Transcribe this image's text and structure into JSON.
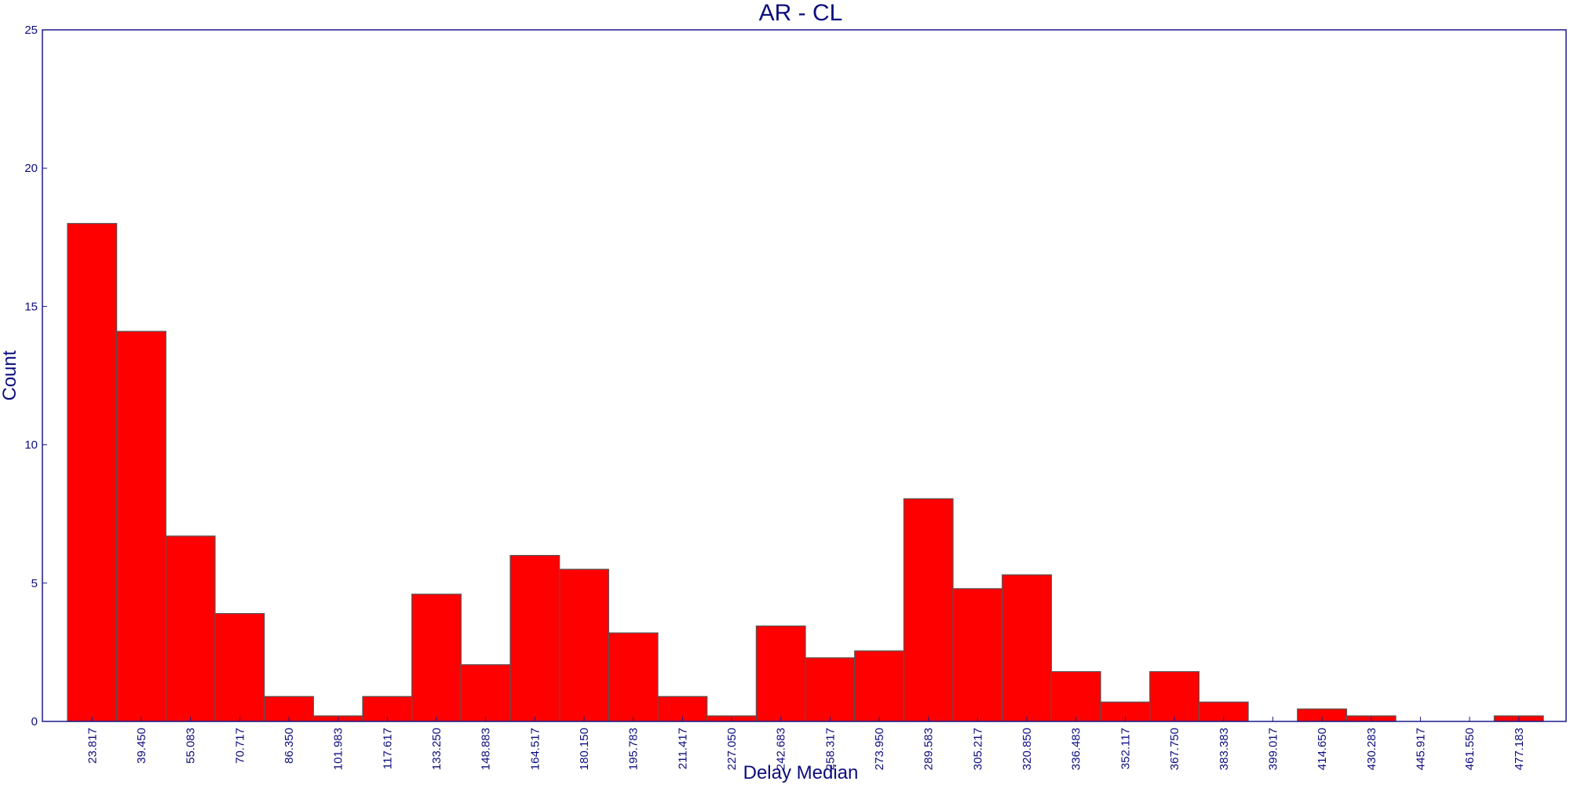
{
  "chart_data": {
    "type": "bar",
    "title": "AR - CL",
    "xlabel": "Delay Median",
    "ylabel": "Count",
    "ylim": [
      0,
      25
    ],
    "yticks": [
      "0",
      "5",
      "10",
      "15",
      "20",
      "25"
    ],
    "categories": [
      "23.817",
      "39.450",
      "55.083",
      "70.717",
      "86.350",
      "101.983",
      "117.617",
      "133.250",
      "148.883",
      "164.517",
      "180.150",
      "195.783",
      "211.417",
      "227.050",
      "242.683",
      "258.317",
      "273.950",
      "289.583",
      "305.217",
      "320.850",
      "336.483",
      "352.117",
      "367.750",
      "383.383",
      "399.017",
      "414.650",
      "430.283",
      "445.917",
      "461.550",
      "477.183"
    ],
    "values": [
      18.0,
      14.1,
      6.7,
      3.9,
      0.9,
      0.2,
      0.9,
      4.6,
      2.05,
      6.0,
      5.5,
      3.2,
      0.9,
      0.2,
      3.45,
      2.3,
      2.55,
      8.05,
      4.8,
      5.3,
      1.8,
      0.7,
      1.8,
      0.7,
      0.0,
      0.45,
      0.2,
      0.0,
      0.0,
      0.2
    ],
    "grid": false,
    "legend": "none",
    "colors": {
      "bar_fill": "#ff0000",
      "bar_stroke": "#555555",
      "text": "#0c0c7e",
      "axis": "#1a1a8c",
      "background": "#ffffff"
    }
  }
}
